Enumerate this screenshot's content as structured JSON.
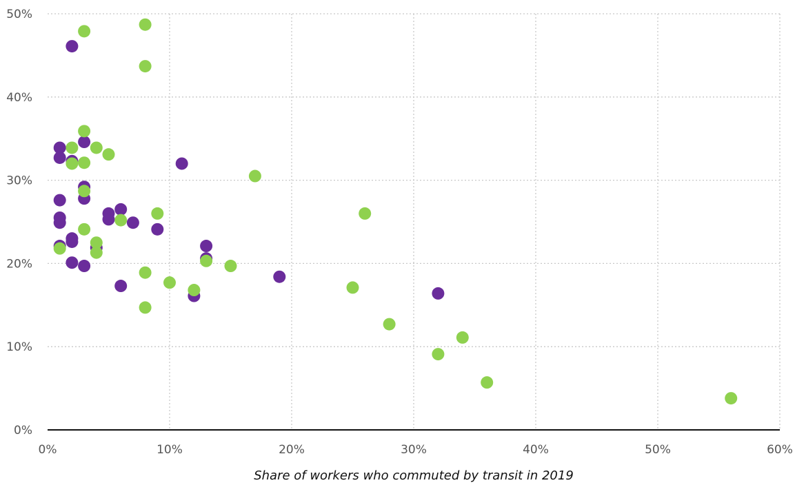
{
  "chart_data": {
    "type": "scatter",
    "xlabel": "Share of workers who commuted by transit in 2019",
    "ylabel": "",
    "xlim": [
      0,
      60
    ],
    "ylim": [
      0,
      50
    ],
    "x_ticks": [
      "0%",
      "10%",
      "20%",
      "30%",
      "40%",
      "50%",
      "60%"
    ],
    "y_ticks": [
      "0%",
      "10%",
      "20%",
      "30%",
      "40%",
      "50%"
    ],
    "x_tick_values": [
      0,
      10,
      20,
      30,
      40,
      50,
      60
    ],
    "y_tick_values": [
      0,
      10,
      20,
      30,
      40,
      50
    ],
    "grid": true,
    "series": [
      {
        "color": "#6a2c9b",
        "points": [
          [
            2,
            46.1
          ],
          [
            3,
            34.6
          ],
          [
            1,
            33.9
          ],
          [
            1,
            32.7
          ],
          [
            2,
            32.3
          ],
          [
            11,
            32.0
          ],
          [
            3,
            29.2
          ],
          [
            3,
            27.8
          ],
          [
            1,
            27.6
          ],
          [
            6,
            26.5
          ],
          [
            5,
            26.0
          ],
          [
            1,
            25.5
          ],
          [
            5,
            25.3
          ],
          [
            1,
            24.9
          ],
          [
            7,
            24.9
          ],
          [
            9,
            24.1
          ],
          [
            1,
            22.1
          ],
          [
            4,
            21.9
          ],
          [
            13,
            22.1
          ],
          [
            2,
            23.0
          ],
          [
            2,
            22.6
          ],
          [
            13,
            20.6
          ],
          [
            2,
            20.1
          ],
          [
            3,
            19.7
          ],
          [
            19,
            18.4
          ],
          [
            6,
            17.3
          ],
          [
            12,
            16.1
          ],
          [
            32,
            16.4
          ]
        ]
      },
      {
        "color": "#8fd14f",
        "points": [
          [
            8,
            48.7
          ],
          [
            3,
            47.9
          ],
          [
            8,
            43.7
          ],
          [
            3,
            35.9
          ],
          [
            2,
            33.9
          ],
          [
            4,
            33.9
          ],
          [
            5,
            33.1
          ],
          [
            2,
            32.0
          ],
          [
            3,
            32.1
          ],
          [
            17,
            30.5
          ],
          [
            3,
            28.7
          ],
          [
            9,
            26.0
          ],
          [
            26,
            26.0
          ],
          [
            6,
            25.2
          ],
          [
            3,
            24.1
          ],
          [
            4,
            22.5
          ],
          [
            1,
            21.8
          ],
          [
            4,
            21.3
          ],
          [
            13,
            20.3
          ],
          [
            15,
            19.7
          ],
          [
            8,
            18.9
          ],
          [
            10,
            17.7
          ],
          [
            12,
            16.8
          ],
          [
            25,
            17.1
          ],
          [
            8,
            14.7
          ],
          [
            28,
            12.7
          ],
          [
            34,
            11.1
          ],
          [
            32,
            9.1
          ],
          [
            36,
            5.7
          ],
          [
            56,
            3.8
          ]
        ]
      }
    ]
  }
}
